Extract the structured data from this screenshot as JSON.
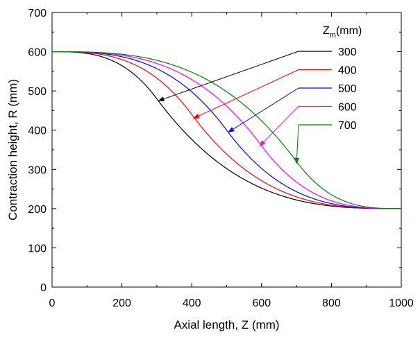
{
  "chart_data": {
    "type": "line",
    "xlabel": "Axial length, Z (mm)",
    "ylabel": "Contraction height, R (mm)",
    "xlim": [
      0,
      1000
    ],
    "ylim": [
      0,
      700
    ],
    "x_ticks": [
      0,
      200,
      400,
      600,
      800,
      1000
    ],
    "y_ticks": [
      0,
      100,
      200,
      300,
      400,
      500,
      600,
      700
    ],
    "grid": false,
    "legend_position": "top-right",
    "legend_title_base": "Z",
    "legend_title_sub": "m",
    "legend_title_unit": "(mm)",
    "curve_model": {
      "R_inlet": 600,
      "R_outlet": 200,
      "L": 1000
    },
    "series": [
      {
        "name": "300",
        "zm": 300,
        "color": "#000000",
        "arrow_target": [
          305,
          475
        ]
      },
      {
        "name": "400",
        "zm": 400,
        "color": "#ff0000",
        "arrow_target": [
          405,
          430
        ]
      },
      {
        "name": "500",
        "zm": 500,
        "color": "#0000ff",
        "arrow_target": [
          505,
          395
        ]
      },
      {
        "name": "600",
        "zm": 600,
        "color": "#ff00ff",
        "arrow_target": [
          595,
          360
        ]
      },
      {
        "name": "700",
        "zm": 700,
        "color": "#008000",
        "arrow_target": [
          700,
          315
        ]
      }
    ]
  }
}
